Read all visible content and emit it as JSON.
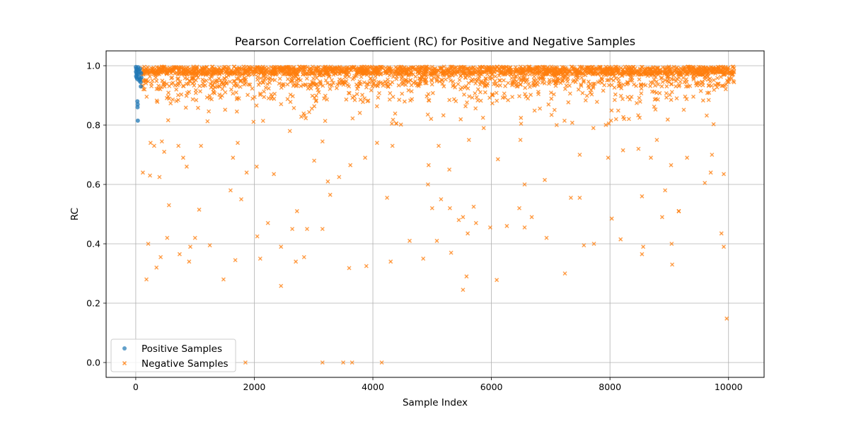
{
  "chart_data": {
    "type": "scatter",
    "title": "Pearson Correlation Coefficient (RC) for Positive and Negative Samples",
    "xlabel": "Sample Index",
    "ylabel": "RC",
    "xlim": [
      -500,
      10600
    ],
    "ylim": [
      -0.05,
      1.05
    ],
    "xticks": [
      0,
      2000,
      4000,
      6000,
      8000,
      10000
    ],
    "yticks": [
      0.0,
      0.2,
      0.4,
      0.6,
      0.8,
      1.0
    ],
    "xtick_labels": [
      "0",
      "2000",
      "4000",
      "6000",
      "8000",
      "10000"
    ],
    "ytick_labels": [
      "0.0",
      "0.2",
      "0.4",
      "0.6",
      "0.8",
      "1.0"
    ],
    "grid": true,
    "legend_position": "bottom-left",
    "series": [
      {
        "name": "Positive Samples",
        "marker": "circle",
        "color": "#1f77b4",
        "x_range": [
          0,
          100
        ],
        "count": 100,
        "points": [
          [
            2,
            0.996
          ],
          [
            4,
            0.98
          ],
          [
            6,
            0.965
          ],
          [
            8,
            0.99
          ],
          [
            12,
            0.975
          ],
          [
            15,
            0.96
          ],
          [
            18,
            0.985
          ],
          [
            22,
            0.97
          ],
          [
            25,
            0.955
          ],
          [
            28,
            0.88
          ],
          [
            30,
            0.86
          ],
          [
            32,
            0.87
          ],
          [
            35,
            0.815
          ],
          [
            40,
            0.995
          ],
          [
            45,
            0.985
          ],
          [
            50,
            0.972
          ],
          [
            55,
            0.96
          ],
          [
            60,
            0.95
          ],
          [
            65,
            0.98
          ],
          [
            70,
            0.99
          ],
          [
            75,
            0.955
          ],
          [
            80,
            0.945
          ],
          [
            85,
            0.93
          ],
          [
            90,
            0.975
          ],
          [
            95,
            0.96
          ]
        ]
      },
      {
        "name": "Negative Samples",
        "marker": "x",
        "color": "#ff7f0e",
        "x_range": [
          100,
          10100
        ],
        "count": 10000,
        "outliers": [
          [
            1850,
            0.0
          ],
          [
            3150,
            0.0
          ],
          [
            3500,
            0.0
          ],
          [
            3650,
            0.0
          ],
          [
            4150,
            0.0
          ],
          [
            9970,
            0.148
          ],
          [
            180,
            0.28
          ],
          [
            1480,
            0.28
          ],
          [
            2450,
            0.258
          ],
          [
            5520,
            0.245
          ],
          [
            6090,
            0.278
          ],
          [
            7240,
            0.3
          ],
          [
            3600,
            0.318
          ],
          [
            4300,
            0.34
          ],
          [
            5580,
            0.29
          ],
          [
            9050,
            0.33
          ],
          [
            210,
            0.4
          ],
          [
            350,
            0.32
          ],
          [
            420,
            0.355
          ],
          [
            530,
            0.42
          ],
          [
            740,
            0.365
          ],
          [
            900,
            0.34
          ],
          [
            920,
            0.39
          ],
          [
            1000,
            0.42
          ],
          [
            1250,
            0.395
          ],
          [
            1680,
            0.345
          ],
          [
            2050,
            0.425
          ],
          [
            2100,
            0.35
          ],
          [
            2230,
            0.47
          ],
          [
            2450,
            0.39
          ],
          [
            2640,
            0.45
          ],
          [
            2700,
            0.34
          ],
          [
            2720,
            0.51
          ],
          [
            2840,
            0.355
          ],
          [
            2890,
            0.45
          ],
          [
            3150,
            0.45
          ],
          [
            3280,
            0.565
          ],
          [
            3890,
            0.325
          ],
          [
            4620,
            0.41
          ],
          [
            4850,
            0.35
          ],
          [
            5080,
            0.41
          ],
          [
            5320,
            0.37
          ],
          [
            5520,
            0.49
          ],
          [
            5600,
            0.435
          ],
          [
            5700,
            0.525
          ],
          [
            5980,
            0.455
          ],
          [
            6260,
            0.46
          ],
          [
            6470,
            0.52
          ],
          [
            6560,
            0.455
          ],
          [
            6680,
            0.49
          ],
          [
            6930,
            0.42
          ],
          [
            7340,
            0.555
          ],
          [
            7490,
            0.555
          ],
          [
            7560,
            0.395
          ],
          [
            7730,
            0.4
          ],
          [
            8030,
            0.485
          ],
          [
            8180,
            0.415
          ],
          [
            8540,
            0.365
          ],
          [
            8560,
            0.39
          ],
          [
            8880,
            0.49
          ],
          [
            9040,
            0.4
          ],
          [
            9160,
            0.51
          ],
          [
            9880,
            0.435
          ],
          [
            9920,
            0.39
          ],
          [
            120,
            0.64
          ],
          [
            240,
            0.63
          ],
          [
            400,
            0.625
          ],
          [
            560,
            0.53
          ],
          [
            860,
            0.66
          ],
          [
            1070,
            0.515
          ],
          [
            1600,
            0.58
          ],
          [
            1780,
            0.55
          ],
          [
            1870,
            0.64
          ],
          [
            2040,
            0.66
          ],
          [
            2330,
            0.635
          ],
          [
            3010,
            0.68
          ],
          [
            3240,
            0.61
          ],
          [
            3430,
            0.625
          ],
          [
            4240,
            0.555
          ],
          [
            4930,
            0.6
          ],
          [
            5000,
            0.52
          ],
          [
            5150,
            0.55
          ],
          [
            5300,
            0.52
          ],
          [
            5450,
            0.48
          ],
          [
            5740,
            0.47
          ],
          [
            6110,
            0.685
          ],
          [
            6560,
            0.6
          ],
          [
            6900,
            0.615
          ],
          [
            7970,
            0.69
          ],
          [
            8540,
            0.56
          ],
          [
            8930,
            0.58
          ],
          [
            9160,
            0.51
          ],
          [
            9700,
            0.64
          ],
          [
            9920,
            0.635
          ],
          [
            250,
            0.74
          ],
          [
            310,
            0.73
          ],
          [
            440,
            0.745
          ],
          [
            480,
            0.71
          ],
          [
            720,
            0.73
          ],
          [
            800,
            0.69
          ],
          [
            1100,
            0.73
          ],
          [
            1640,
            0.69
          ],
          [
            1720,
            0.74
          ],
          [
            2600,
            0.78
          ],
          [
            3150,
            0.745
          ],
          [
            3620,
            0.665
          ],
          [
            3870,
            0.69
          ],
          [
            4070,
            0.74
          ],
          [
            4330,
            0.73
          ],
          [
            4940,
            0.665
          ],
          [
            5110,
            0.73
          ],
          [
            5290,
            0.65
          ],
          [
            5620,
            0.75
          ],
          [
            5870,
            0.79
          ],
          [
            6490,
            0.75
          ],
          [
            7100,
            0.8
          ],
          [
            7490,
            0.7
          ],
          [
            7720,
            0.79
          ],
          [
            8220,
            0.715
          ],
          [
            8480,
            0.72
          ],
          [
            8690,
            0.69
          ],
          [
            8790,
            0.75
          ],
          [
            9030,
            0.665
          ],
          [
            9300,
            0.69
          ],
          [
            9600,
            0.605
          ],
          [
            9720,
            0.7
          ]
        ]
      }
    ]
  }
}
